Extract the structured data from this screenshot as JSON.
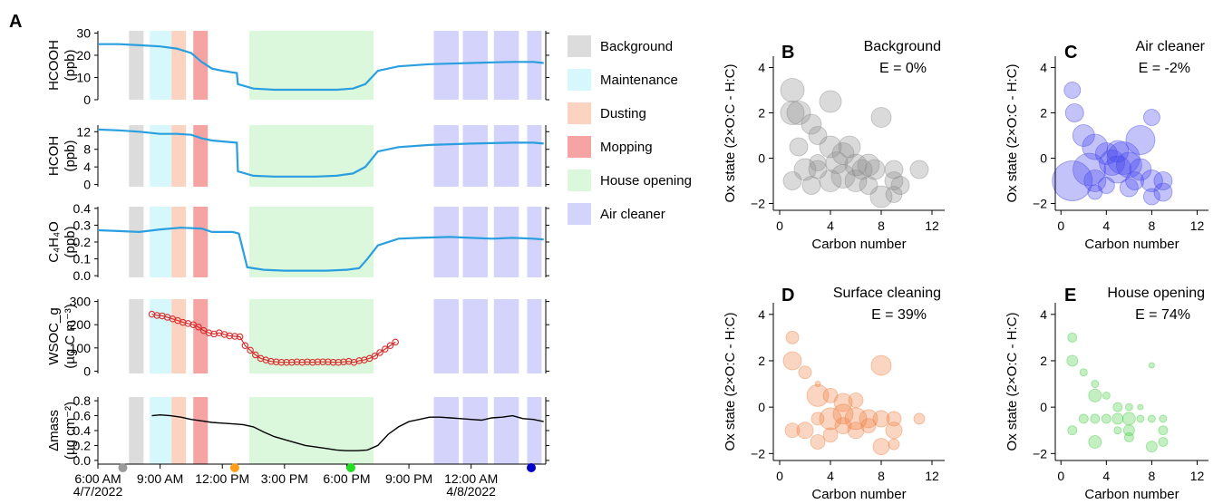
{
  "figure_label": "A",
  "events": [
    {
      "key": "bg",
      "name": "Background",
      "color": "#dcdcdc"
    },
    {
      "key": "mt",
      "name": "Maintenance",
      "color": "#d6f7fb"
    },
    {
      "key": "du",
      "name": "Dusting",
      "color": "#fcd3c0"
    },
    {
      "key": "mo",
      "name": "Mopping",
      "color": "#f5a3a3"
    },
    {
      "key": "ho",
      "name": "House opening",
      "color": "#dcf8dc"
    },
    {
      "key": "ac",
      "name": "Air cleaner",
      "color": "#d3d3fb"
    }
  ],
  "event_windows": [
    {
      "key": "bg",
      "start": 1.5,
      "end": 2.2
    },
    {
      "key": "mt",
      "start": 2.5,
      "end": 3.55
    },
    {
      "key": "du",
      "start": 3.55,
      "end": 4.25
    },
    {
      "key": "mo",
      "start": 4.6,
      "end": 5.3
    },
    {
      "key": "ho",
      "start": 7.3,
      "end": 13.3
    },
    {
      "key": "ac",
      "start": 16.2,
      "end": 17.4
    },
    {
      "key": "ac",
      "start": 17.6,
      "end": 18.8
    },
    {
      "key": "ac",
      "start": 19.1,
      "end": 20.3
    },
    {
      "key": "ac",
      "start": 20.7,
      "end": 21.4
    }
  ],
  "time_axis": {
    "ticks": [
      {
        "t": 0,
        "line1": "6:00 AM",
        "line2": "4/7/2022"
      },
      {
        "t": 3,
        "line1": "9:00 AM",
        "line2": ""
      },
      {
        "t": 6,
        "line1": "12:00 PM",
        "line2": ""
      },
      {
        "t": 9,
        "line1": "3:00 PM",
        "line2": ""
      },
      {
        "t": 12,
        "line1": "6:00 PM",
        "line2": ""
      },
      {
        "t": 15,
        "line1": "9:00 PM",
        "line2": ""
      },
      {
        "t": 18,
        "line1": "12:00 AM",
        "line2": "4/8/2022"
      }
    ],
    "markers": [
      {
        "t": 1.2,
        "color": "#9b9b9b"
      },
      {
        "t": 6.6,
        "color": "#ff9f1a"
      },
      {
        "t": 12.2,
        "color": "#22dd22"
      },
      {
        "t": 20.9,
        "color": "#0000cc"
      }
    ]
  },
  "chart_data": [
    {
      "type": "line",
      "panel": "A1",
      "ylabel": "HCOOH",
      "yunit": "(ppb)",
      "ylim": [
        0,
        31
      ],
      "yticks": [
        0,
        10,
        20,
        30
      ],
      "color": "#2a9fe0",
      "x": [
        0,
        1,
        2,
        3,
        3.8,
        4.5,
        5,
        5.5,
        6,
        6.7,
        6.75,
        7.5,
        8.5,
        9.5,
        10.5,
        11.5,
        12.3,
        12.9,
        13.5,
        14.5,
        16,
        18,
        19,
        20,
        21,
        21.5
      ],
      "y": [
        25,
        25,
        24.5,
        24,
        23,
        21,
        17,
        14,
        13,
        12,
        7,
        5,
        4.5,
        4.5,
        4.5,
        4.5,
        5,
        7,
        13,
        15,
        16,
        16.5,
        16.8,
        17,
        17,
        16.5
      ]
    },
    {
      "type": "line",
      "panel": "A2",
      "ylabel": "HCOH",
      "yunit": "(ppb)",
      "ylim": [
        -0.5,
        13.5
      ],
      "yticks": [
        0,
        4,
        8,
        12
      ],
      "color": "#2a9fe0",
      "x": [
        0,
        1,
        2,
        3,
        3.8,
        4.5,
        5,
        5.5,
        6,
        6.7,
        6.75,
        7.5,
        8.5,
        9.5,
        10.5,
        11.5,
        12.3,
        12.9,
        13.5,
        14.5,
        16,
        18,
        19,
        20,
        21,
        21.5
      ],
      "y": [
        12.5,
        12.3,
        12,
        11.5,
        11.5,
        11.3,
        10.5,
        10,
        9.8,
        9.5,
        3,
        2,
        1.8,
        1.8,
        1.8,
        2,
        2.5,
        4,
        7.5,
        8.5,
        9,
        9.3,
        9.4,
        9.5,
        9.5,
        9.3
      ]
    },
    {
      "type": "line",
      "panel": "A3",
      "ylabel": "C₄H₄O",
      "yunit": "(ppb)",
      "ylim": [
        -0.01,
        0.41
      ],
      "yticks": [
        0.0,
        0.1,
        0.2,
        0.3,
        0.4
      ],
      "color": "#2a9fe0",
      "x": [
        0,
        1,
        2,
        3,
        4,
        5,
        5.5,
        6,
        6.5,
        6.8,
        7.2,
        8,
        9,
        10,
        11,
        12,
        12.6,
        13,
        13.5,
        14.5,
        15.5,
        17,
        18,
        19,
        20,
        21,
        21.5
      ],
      "y": [
        0.27,
        0.265,
        0.26,
        0.275,
        0.285,
        0.28,
        0.26,
        0.26,
        0.26,
        0.25,
        0.05,
        0.035,
        0.03,
        0.03,
        0.03,
        0.035,
        0.045,
        0.1,
        0.18,
        0.22,
        0.225,
        0.23,
        0.225,
        0.22,
        0.225,
        0.22,
        0.215
      ]
    },
    {
      "type": "scatter",
      "panel": "A4",
      "ylabel": "WSOC_g",
      "yunit": "(µg C m⁻³)",
      "ylim": [
        -10,
        310
      ],
      "yticks": [
        0,
        100,
        200,
        300
      ],
      "color": "#d92b2b",
      "x": [
        2.6,
        2.85,
        3.1,
        3.35,
        3.6,
        3.85,
        4.1,
        4.35,
        4.6,
        4.85,
        5.1,
        5.35,
        5.6,
        5.85,
        6.1,
        6.35,
        6.6,
        6.85,
        7.1,
        7.35,
        7.6,
        7.85,
        8.1,
        8.35,
        8.6,
        8.85,
        9.1,
        9.35,
        9.6,
        9.85,
        10.1,
        10.35,
        10.6,
        10.85,
        11.1,
        11.35,
        11.6,
        11.85,
        12.1,
        12.35,
        12.6,
        12.85,
        13.1,
        13.35,
        13.6,
        13.85,
        14.1,
        14.35
      ],
      "y": [
        245,
        240,
        238,
        232,
        225,
        218,
        210,
        205,
        200,
        190,
        175,
        165,
        160,
        165,
        158,
        152,
        150,
        148,
        110,
        90,
        70,
        55,
        48,
        42,
        40,
        38,
        38,
        38,
        40,
        38,
        40,
        38,
        40,
        40,
        40,
        38,
        38,
        40,
        42,
        38,
        45,
        48,
        55,
        65,
        80,
        95,
        110,
        125
      ]
    },
    {
      "type": "line",
      "panel": "A5",
      "ylabel": "Δmass",
      "yunit": "(µg cm⁻²)",
      "ylim": [
        -0.05,
        0.85
      ],
      "yticks": [
        0.0,
        0.2,
        0.4,
        0.6,
        0.8
      ],
      "color": "#000000",
      "x": [
        2.6,
        3.0,
        3.5,
        4.0,
        4.5,
        5.0,
        5.5,
        6.0,
        6.5,
        7.0,
        7.5,
        8.0,
        8.5,
        9.0,
        9.5,
        10.0,
        10.5,
        11.0,
        11.5,
        12.0,
        12.5,
        13.0,
        13.5,
        14.0,
        14.5,
        15.0,
        15.5,
        16.0,
        16.5,
        17.0,
        17.5,
        18.0,
        18.5,
        19.0,
        19.5,
        20.0,
        20.5,
        21.0,
        21.5
      ],
      "y": [
        0.6,
        0.61,
        0.6,
        0.58,
        0.55,
        0.53,
        0.51,
        0.5,
        0.49,
        0.48,
        0.45,
        0.38,
        0.32,
        0.28,
        0.24,
        0.2,
        0.18,
        0.16,
        0.14,
        0.13,
        0.13,
        0.14,
        0.2,
        0.35,
        0.45,
        0.52,
        0.55,
        0.58,
        0.58,
        0.57,
        0.56,
        0.55,
        0.54,
        0.57,
        0.58,
        0.6,
        0.56,
        0.55,
        0.52
      ]
    },
    {
      "type": "scatter",
      "panel": "B",
      "title": "Background",
      "annotation": "E = 0%",
      "xlabel": "Carbon number",
      "ylabel": "Ox state (2×O:C - H:C)",
      "xlim": [
        -0.5,
        13
      ],
      "ylim": [
        -2.3,
        4.5
      ],
      "xticks": [
        0,
        4,
        8,
        12
      ],
      "yticks": [
        -2,
        0,
        2,
        4
      ],
      "color": "#8c8c8c",
      "points": [
        [
          1,
          3,
          13
        ],
        [
          1,
          2,
          13
        ],
        [
          1.5,
          2,
          13
        ],
        [
          2.5,
          1.5,
          11
        ],
        [
          1.5,
          0.5,
          10
        ],
        [
          4,
          2.5,
          12
        ],
        [
          3,
          1,
          10
        ],
        [
          2,
          -0.5,
          12
        ],
        [
          3,
          -0.5,
          10
        ],
        [
          1,
          -1,
          10
        ],
        [
          2.5,
          -1.2,
          10
        ],
        [
          4,
          0.5,
          12
        ],
        [
          4.5,
          -0.2,
          12
        ],
        [
          5,
          0.2,
          12
        ],
        [
          5.5,
          0.5,
          12
        ],
        [
          5,
          -0.8,
          13
        ],
        [
          6,
          -0.3,
          12
        ],
        [
          6,
          -1,
          12
        ],
        [
          6.5,
          -0.5,
          11
        ],
        [
          7,
          -0.3,
          12
        ],
        [
          7.5,
          -0.5,
          11
        ],
        [
          7,
          -1.2,
          10
        ],
        [
          8,
          -1.7,
          12
        ],
        [
          9,
          -1,
          10
        ],
        [
          9,
          -0.5,
          10
        ],
        [
          9.5,
          -1.2,
          10
        ],
        [
          8,
          1.8,
          11
        ],
        [
          11,
          -0.5,
          10
        ],
        [
          4,
          -1,
          12
        ],
        [
          3,
          -0.2,
          9
        ],
        [
          9,
          -1.6,
          9
        ]
      ]
    },
    {
      "type": "scatter",
      "panel": "C",
      "title": "Air cleaner",
      "annotation": "E = -2%",
      "xlabel": "Carbon number",
      "ylabel": "Ox state (2×O:C - H:C)",
      "xlim": [
        -0.5,
        13
      ],
      "ylim": [
        -2.3,
        4.5
      ],
      "xticks": [
        0,
        4,
        8,
        12
      ],
      "yticks": [
        -2,
        0,
        2,
        4
      ],
      "color": "#4444ee",
      "points": [
        [
          1,
          3,
          9
        ],
        [
          1.2,
          2,
          10
        ],
        [
          2,
          1,
          12
        ],
        [
          3,
          0.5,
          14
        ],
        [
          1,
          -1,
          22
        ],
        [
          2.5,
          -0.5,
          18
        ],
        [
          3,
          -1,
          12
        ],
        [
          4,
          0.2,
          12
        ],
        [
          4.5,
          -0.2,
          14
        ],
        [
          5,
          -0.5,
          15
        ],
        [
          5,
          0.3,
          12
        ],
        [
          5.5,
          0,
          18
        ],
        [
          6,
          -0.3,
          14
        ],
        [
          6.5,
          -1,
          10
        ],
        [
          7,
          -0.5,
          12
        ],
        [
          7,
          0.8,
          16
        ],
        [
          8,
          -1,
          12
        ],
        [
          8,
          1.8,
          9
        ],
        [
          9,
          -1,
          10
        ],
        [
          9,
          -1.5,
          10
        ],
        [
          8,
          -1.7,
          9
        ],
        [
          3,
          -1.5,
          8
        ],
        [
          6,
          -1.3,
          10
        ],
        [
          4,
          -1.2,
          9
        ]
      ]
    },
    {
      "type": "scatter",
      "panel": "D",
      "title": "Surface cleaning",
      "annotation": "E = 39%",
      "xlabel": "Carbon number",
      "ylabel": "Ox state (2×O:C - H:C)",
      "xlim": [
        -0.5,
        13
      ],
      "ylim": [
        -2.3,
        4.5
      ],
      "xticks": [
        0,
        4,
        8,
        12
      ],
      "yticks": [
        -2,
        0,
        2,
        4
      ],
      "color": "#f08040",
      "points": [
        [
          1,
          3,
          7
        ],
        [
          1,
          2,
          10
        ],
        [
          2,
          1.5,
          7
        ],
        [
          3,
          1,
          3
        ],
        [
          2,
          -1,
          9
        ],
        [
          3,
          0.5,
          12
        ],
        [
          3,
          -0.5,
          7
        ],
        [
          4,
          0.5,
          8
        ],
        [
          4,
          -0.5,
          12
        ],
        [
          5,
          0.2,
          10
        ],
        [
          5,
          -0.3,
          11
        ],
        [
          5,
          -0.8,
          9
        ],
        [
          6,
          -0.5,
          12
        ],
        [
          6,
          0.3,
          8
        ],
        [
          6,
          -1,
          9
        ],
        [
          7,
          -0.5,
          10
        ],
        [
          7,
          -0.8,
          8
        ],
        [
          8,
          -0.5,
          9
        ],
        [
          8,
          -1.7,
          9
        ],
        [
          8,
          1.8,
          11
        ],
        [
          9,
          -1,
          9
        ],
        [
          9,
          -0.5,
          8
        ],
        [
          11,
          -0.5,
          6
        ],
        [
          1,
          -1,
          8
        ],
        [
          4,
          -1.2,
          8
        ],
        [
          3,
          -1.5,
          8
        ],
        [
          9,
          -1.6,
          6
        ]
      ]
    },
    {
      "type": "scatter",
      "panel": "E",
      "title": "House opening",
      "annotation": "E = 74%",
      "xlabel": "Carbon number",
      "ylabel": "Ox state (2×O:C - H:C)",
      "xlim": [
        -0.5,
        13
      ],
      "ylim": [
        -2.3,
        4.5
      ],
      "xticks": [
        0,
        4,
        8,
        12
      ],
      "yticks": [
        -2,
        0,
        2,
        4
      ],
      "color": "#44cc44",
      "points": [
        [
          1,
          3,
          5
        ],
        [
          1,
          2,
          6
        ],
        [
          2,
          1.5,
          4
        ],
        [
          3,
          1,
          4
        ],
        [
          2,
          -0.5,
          5
        ],
        [
          3,
          0.5,
          7
        ],
        [
          3,
          -0.5,
          5
        ],
        [
          4,
          0.5,
          4
        ],
        [
          4,
          -0.5,
          5
        ],
        [
          5,
          0,
          5
        ],
        [
          5,
          -0.5,
          6
        ],
        [
          5,
          -1,
          4
        ],
        [
          6,
          -0.5,
          7
        ],
        [
          6,
          0,
          4
        ],
        [
          6,
          -1,
          6
        ],
        [
          7,
          -0.5,
          4
        ],
        [
          7,
          0,
          3
        ],
        [
          8,
          -0.5,
          4
        ],
        [
          8,
          -1.7,
          6
        ],
        [
          8,
          1.8,
          3
        ],
        [
          9,
          -1,
          5
        ],
        [
          9,
          -0.5,
          4
        ],
        [
          9,
          -1.5,
          5
        ],
        [
          1,
          -1,
          5
        ],
        [
          3,
          -1.5,
          7
        ],
        [
          6,
          -1.3,
          5
        ]
      ]
    }
  ]
}
